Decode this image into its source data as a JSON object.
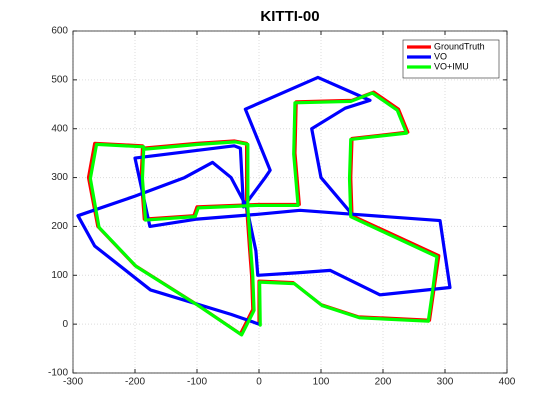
{
  "chart_data": {
    "type": "line",
    "title": "KITTI-00",
    "xlim": [
      -300,
      400
    ],
    "xticks": [
      -300,
      -200,
      -100,
      0,
      100,
      200,
      300,
      400
    ],
    "ylim": [
      -100,
      600
    ],
    "yticks": [
      -100,
      0,
      100,
      200,
      300,
      400,
      500,
      600
    ],
    "grid": true,
    "legend": "top-right",
    "series": [
      {
        "name": "GroundTruth",
        "color": "#ff0000",
        "x": [
          0,
          0,
          55,
          100,
          160,
          275,
          282,
          290,
          150,
          148,
          150,
          240,
          225,
          185,
          150,
          60,
          58,
          65,
          0,
          -100,
          -105,
          -185,
          -190,
          -188,
          -100,
          -40,
          -20,
          -20,
          -15,
          -12,
          -10,
          -30,
          -100,
          -200,
          -260,
          -275,
          -265,
          -188
        ],
        "values": [
          0,
          88,
          85,
          40,
          15,
          8,
          70,
          140,
          222,
          300,
          380,
          393,
          440,
          475,
          458,
          455,
          350,
          245,
          245,
          240,
          222,
          215,
          300,
          360,
          370,
          375,
          370,
          240,
          150,
          100,
          30,
          -20,
          40,
          120,
          200,
          300,
          370,
          365
        ]
      },
      {
        "name": "VO",
        "color": "#0000ff",
        "x": [
          0,
          -45,
          -175,
          -265,
          -292,
          -200,
          -120,
          -75,
          -45,
          -20,
          -5,
          -2,
          60,
          115,
          195,
          308,
          292,
          150,
          66,
          0,
          -100,
          -176,
          -200,
          -40,
          -30,
          -25,
          10,
          18,
          -22,
          95,
          179,
          139,
          85,
          100,
          150
        ],
        "values": [
          0,
          20,
          70,
          160,
          222,
          262,
          300,
          331,
          300,
          240,
          150,
          100,
          105,
          110,
          60,
          75,
          212,
          225,
          233,
          225,
          215,
          200,
          340,
          365,
          360,
          240,
          300,
          315,
          440,
          505,
          458,
          442,
          400,
          300,
          225
        ]
      },
      {
        "name": "VO+IMU",
        "color": "#00ff00",
        "x": [
          2,
          1,
          57,
          102,
          162,
          273,
          280,
          287,
          148,
          146,
          148,
          238,
          223,
          183,
          148,
          58,
          56,
          63,
          -2,
          -98,
          -103,
          -183,
          -188,
          -186,
          -98,
          -38,
          -18,
          -18,
          -13,
          -10,
          -8,
          -28,
          -98,
          -198,
          -258,
          -272,
          -262,
          -186
        ],
        "values": [
          -2,
          86,
          83,
          38,
          13,
          6,
          68,
          138,
          220,
          298,
          378,
          391,
          438,
          473,
          456,
          453,
          348,
          243,
          243,
          238,
          220,
          213,
          298,
          358,
          368,
          373,
          368,
          238,
          148,
          98,
          28,
          -22,
          38,
          118,
          198,
          298,
          368,
          363
        ]
      }
    ]
  }
}
